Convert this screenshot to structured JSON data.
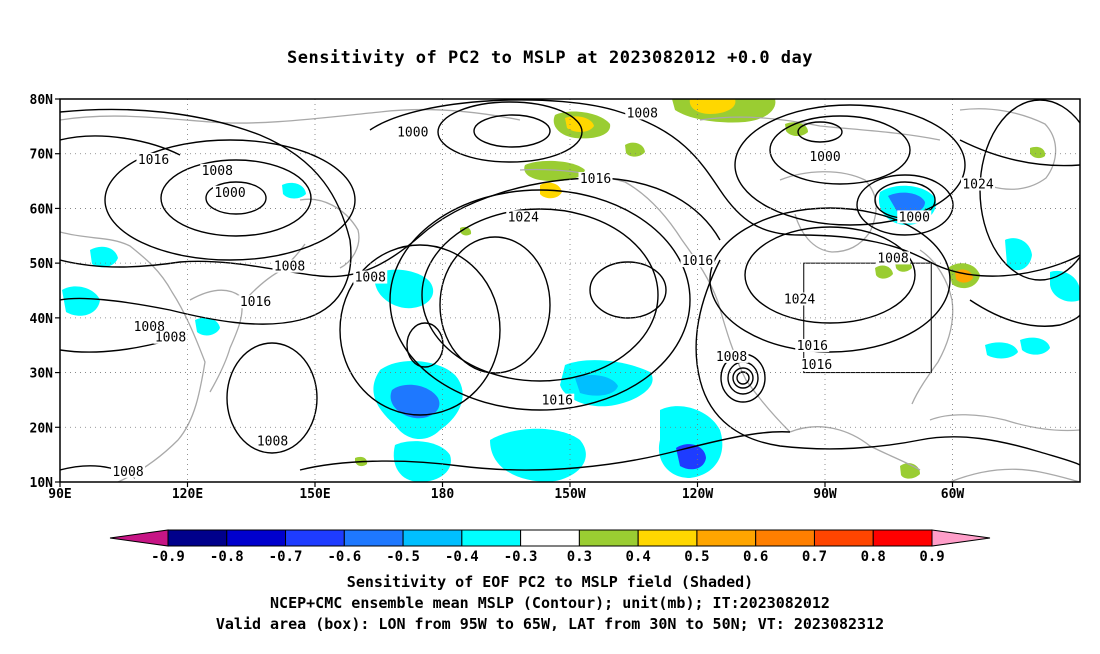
{
  "title": "Sensitivity of PC2 to MSLP at 2023082012 +0.0 day",
  "map": {
    "lat_ticks": [
      "80N",
      "70N",
      "60N",
      "50N",
      "40N",
      "30N",
      "20N",
      "10N"
    ],
    "lon_ticks": [
      "90E",
      "120E",
      "150E",
      "180",
      "150W",
      "120W",
      "90W",
      "60W"
    ],
    "contour_labels": [
      {
        "text": "1000",
        "lon": 130,
        "lat": 62.5
      },
      {
        "text": "1008",
        "lon": 127,
        "lat": 66.5
      },
      {
        "text": "1016",
        "lon": 112,
        "lat": 68.5
      },
      {
        "text": "1000",
        "lon": 173,
        "lat": 73.5
      },
      {
        "text": "1008",
        "lon": 227,
        "lat": 77
      },
      {
        "text": "1016",
        "lon": 216,
        "lat": 65
      },
      {
        "text": "1024",
        "lon": 199,
        "lat": 58
      },
      {
        "text": "1000",
        "lon": 270,
        "lat": 69
      },
      {
        "text": "1000",
        "lon": 291,
        "lat": 58
      },
      {
        "text": "1024",
        "lon": 306,
        "lat": 64
      },
      {
        "text": "1008",
        "lon": 144,
        "lat": 49
      },
      {
        "text": "1016",
        "lon": 136,
        "lat": 42.5
      },
      {
        "text": "1008",
        "lon": 163,
        "lat": 47
      },
      {
        "text": "1008",
        "lon": 111,
        "lat": 38
      },
      {
        "text": "1008",
        "lon": 116,
        "lat": 36
      },
      {
        "text": "1016",
        "lon": 240,
        "lat": 50
      },
      {
        "text": "1024",
        "lon": 264,
        "lat": 43
      },
      {
        "text": "1016",
        "lon": 267,
        "lat": 34.5
      },
      {
        "text": "1016",
        "lon": 268,
        "lat": 31
      },
      {
        "text": "1008",
        "lon": 248,
        "lat": 32.5
      },
      {
        "text": "1008",
        "lon": 286,
        "lat": 50.5
      },
      {
        "text": "1016",
        "lon": 207,
        "lat": 24.5
      },
      {
        "text": "1008",
        "lon": 140,
        "lat": 17
      },
      {
        "text": "1008",
        "lon": 106,
        "lat": 11.5
      }
    ],
    "valid_box": {
      "lon_west": -95,
      "lon_east": -65,
      "lat_south": 30,
      "lat_north": 50
    }
  },
  "colorbar": {
    "labels": [
      "-0.9",
      "-0.8",
      "-0.7",
      "-0.6",
      "-0.5",
      "-0.4",
      "-0.3",
      "0.3",
      "0.4",
      "0.5",
      "0.6",
      "0.7",
      "0.8",
      "0.9"
    ],
    "colors": [
      "#c71585",
      "#00008b",
      "#0000cd",
      "#1e3cff",
      "#1e78ff",
      "#00bfff",
      "#00ffff",
      "#ffffff",
      "#9acd32",
      "#ffd700",
      "#ffa500",
      "#ff7f00",
      "#ff4500",
      "#ff0000",
      "#ff9ec9"
    ]
  },
  "caption": {
    "line1": "Sensitivity of EOF PC2 to MSLP field (Shaded)",
    "line2": "NCEP+CMC ensemble mean MSLP (Contour); unit(mb); IT:2023082012",
    "line3": "Valid area (box): LON from 95W to 65W, LAT from 30N to 50N; VT: 2023082312"
  }
}
